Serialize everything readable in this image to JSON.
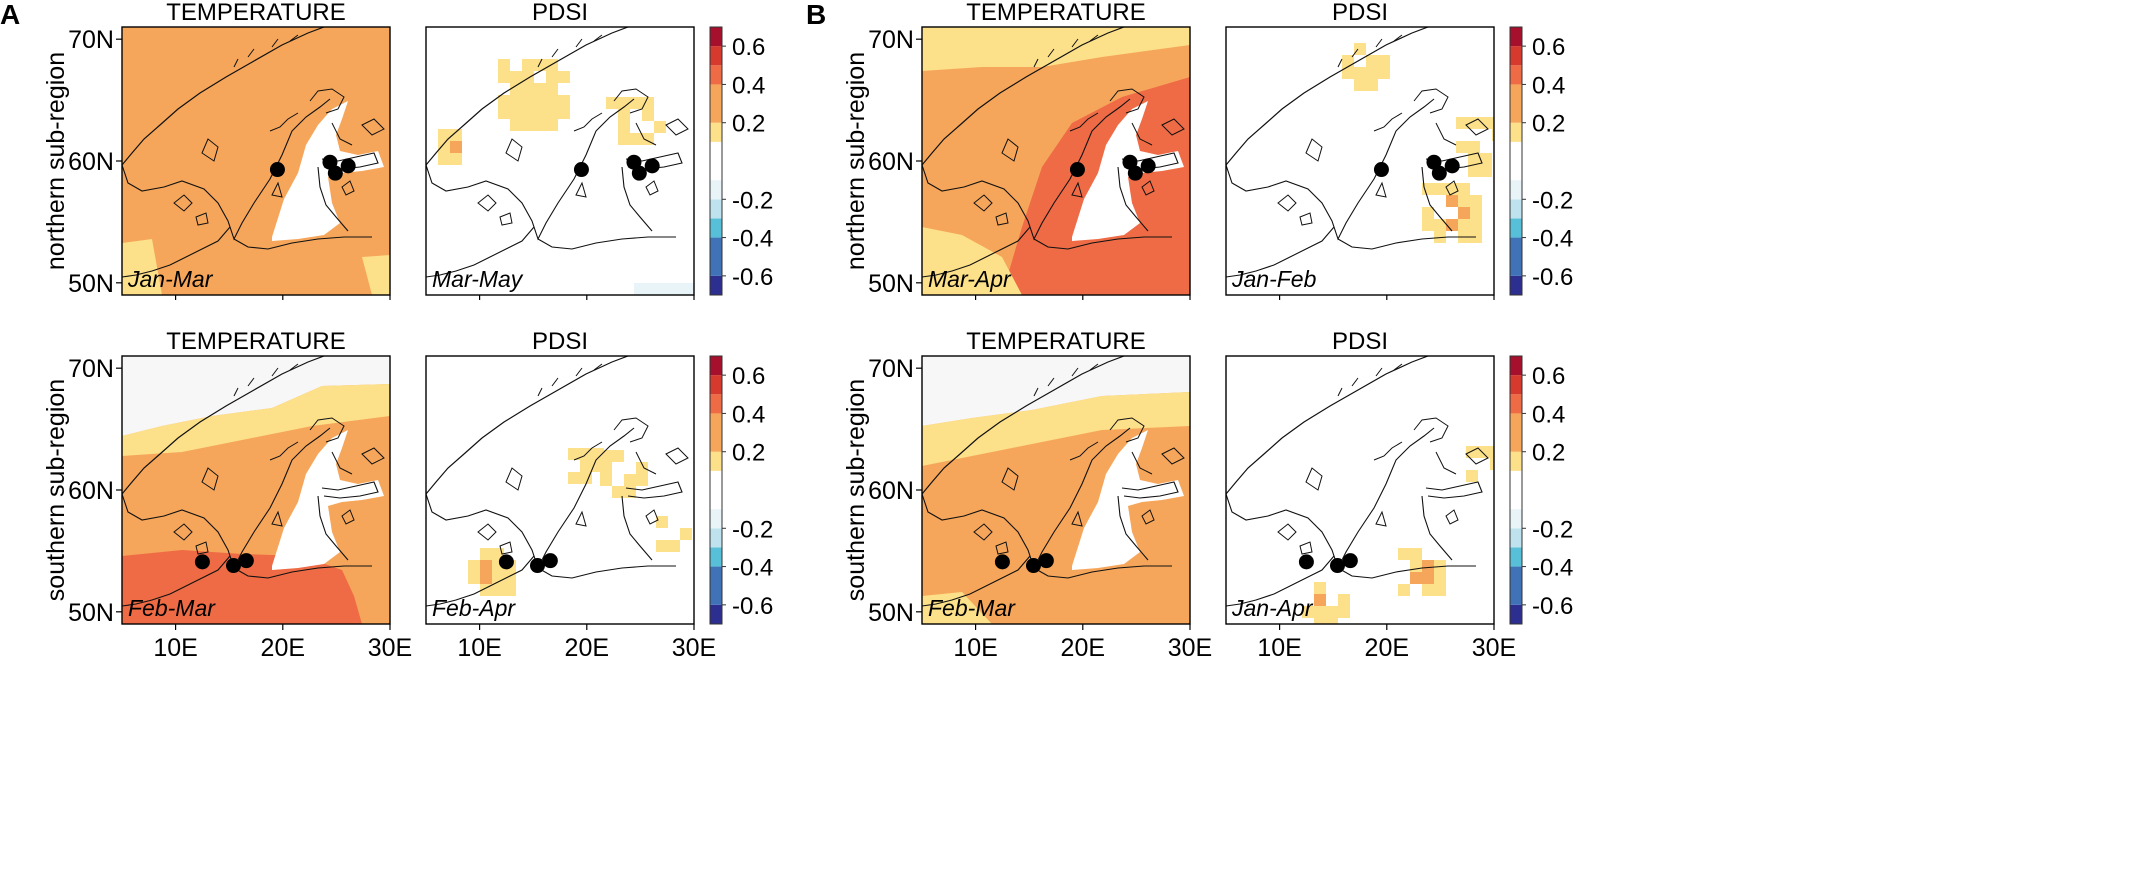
{
  "figure": {
    "panel_labels": [
      "A",
      "B"
    ],
    "row_labels": [
      "northern sub-region",
      "southern sub-region"
    ],
    "x_ticks": [
      "10E",
      "20E",
      "30E"
    ],
    "y_ticks": [
      "70N",
      "60N",
      "50N"
    ],
    "colorbar_labels": [
      "0.6",
      "0.4",
      "0.2",
      "-0.2",
      "-0.4",
      "-0.6"
    ]
  },
  "colors": {
    "scale": [
      "#2c2f8f",
      "#3f72b6",
      "#57c0d8",
      "#bfe3ee",
      "#e9f4f9",
      "#ffffff",
      "#fde08a",
      "#f6a65a",
      "#ee6b45",
      "#d63a2f",
      "#a6102c"
    ],
    "bins": [
      -0.7,
      -0.6,
      -0.4,
      -0.3,
      -0.2,
      -0.1,
      0.1,
      0.2,
      0.4,
      0.5,
      0.6,
      0.7
    ],
    "land_white": "#ffffff",
    "coast": "#111111",
    "site": "#000000"
  },
  "chart_data": [
    {
      "type": "heatmap",
      "panel": "A",
      "row": "northern sub-region",
      "title": "TEMPERATURE",
      "season": "Jan-Mar",
      "dominant_correlation": 0.35,
      "colorbar_range": [
        -0.7,
        0.7
      ],
      "sites": [
        {
          "lon": 19.5,
          "lat": 59.3
        },
        {
          "lon": 24.4,
          "lat": 59.9
        },
        {
          "lon": 24.9,
          "lat": 59.0
        },
        {
          "lon": 26.1,
          "lat": 59.6
        }
      ]
    },
    {
      "type": "heatmap",
      "panel": "A",
      "row": "northern sub-region",
      "title": "PDSI",
      "season": "Mar-May",
      "dominant_correlation": 0.0,
      "colorbar_range": [
        -0.7,
        0.7
      ],
      "sites": [
        {
          "lon": 19.5,
          "lat": 59.3
        },
        {
          "lon": 24.4,
          "lat": 59.9
        },
        {
          "lon": 24.9,
          "lat": 59.0
        },
        {
          "lon": 26.1,
          "lat": 59.6
        }
      ]
    },
    {
      "type": "heatmap",
      "panel": "A",
      "row": "southern sub-region",
      "title": "TEMPERATURE",
      "season": "Feb-Mar",
      "dominant_correlation": 0.35,
      "colorbar_range": [
        -0.7,
        0.7
      ],
      "sites": [
        {
          "lon": 12.5,
          "lat": 54.1
        },
        {
          "lon": 15.4,
          "lat": 53.8
        },
        {
          "lon": 16.6,
          "lat": 54.2
        }
      ]
    },
    {
      "type": "heatmap",
      "panel": "A",
      "row": "southern sub-region",
      "title": "PDSI",
      "season": "Feb-Apr",
      "dominant_correlation": 0.0,
      "colorbar_range": [
        -0.7,
        0.7
      ],
      "sites": [
        {
          "lon": 12.5,
          "lat": 54.1
        },
        {
          "lon": 15.4,
          "lat": 53.8
        },
        {
          "lon": 16.6,
          "lat": 54.2
        }
      ]
    },
    {
      "type": "heatmap",
      "panel": "B",
      "row": "northern sub-region",
      "title": "TEMPERATURE",
      "season": "Mar-Apr",
      "dominant_correlation": 0.35,
      "colorbar_range": [
        -0.7,
        0.7
      ],
      "sites": [
        {
          "lon": 19.5,
          "lat": 59.3
        },
        {
          "lon": 24.4,
          "lat": 59.9
        },
        {
          "lon": 24.9,
          "lat": 59.0
        },
        {
          "lon": 26.1,
          "lat": 59.6
        }
      ]
    },
    {
      "type": "heatmap",
      "panel": "B",
      "row": "northern sub-region",
      "title": "PDSI",
      "season": "Jan-Feb",
      "dominant_correlation": 0.0,
      "colorbar_range": [
        -0.7,
        0.7
      ],
      "sites": [
        {
          "lon": 19.5,
          "lat": 59.3
        },
        {
          "lon": 24.4,
          "lat": 59.9
        },
        {
          "lon": 24.9,
          "lat": 59.0
        },
        {
          "lon": 26.1,
          "lat": 59.6
        }
      ]
    },
    {
      "type": "heatmap",
      "panel": "B",
      "row": "southern sub-region",
      "title": "TEMPERATURE",
      "season": "Feb-Mar",
      "dominant_correlation": 0.35,
      "colorbar_range": [
        -0.7,
        0.7
      ],
      "sites": [
        {
          "lon": 12.5,
          "lat": 54.1
        },
        {
          "lon": 15.4,
          "lat": 53.8
        },
        {
          "lon": 16.6,
          "lat": 54.2
        }
      ]
    },
    {
      "type": "heatmap",
      "panel": "B",
      "row": "southern sub-region",
      "title": "PDSI",
      "season": "Jan-Apr",
      "dominant_correlation": 0.0,
      "colorbar_range": [
        -0.7,
        0.7
      ],
      "sites": [
        {
          "lon": 12.5,
          "lat": 54.1
        },
        {
          "lon": 15.4,
          "lat": 53.8
        },
        {
          "lon": 16.6,
          "lat": 54.2
        }
      ]
    }
  ]
}
